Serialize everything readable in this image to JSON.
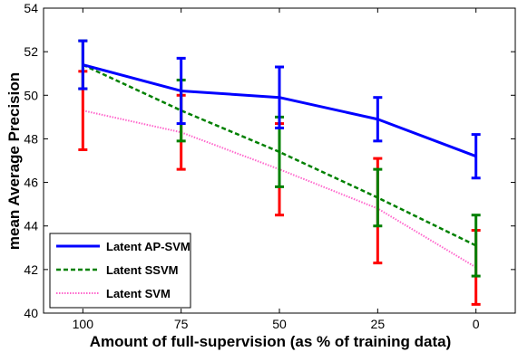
{
  "chart_data": {
    "type": "line",
    "xlabel": "Amount of full-supervision (as % of training data)",
    "ylabel": "mean Average Precision",
    "x": [
      100,
      75,
      50,
      25,
      0
    ],
    "x_tick_labels": [
      "100",
      "75",
      "50",
      "25",
      "0"
    ],
    "xlim": [
      110,
      -10
    ],
    "ylim": [
      40,
      54
    ],
    "y_ticks": [
      40,
      42,
      44,
      46,
      48,
      50,
      52,
      54
    ],
    "grid": false,
    "legend_position": "bottom-left",
    "series": [
      {
        "name": "Latent AP-SVM",
        "color": "#0000ff",
        "line_style": "solid",
        "values": [
          51.4,
          50.2,
          49.9,
          48.9,
          47.2
        ],
        "error_low": [
          50.3,
          48.7,
          48.5,
          47.9,
          46.2
        ],
        "error_high": [
          52.5,
          51.7,
          51.3,
          49.9,
          48.2
        ],
        "error_color": "#0000ff"
      },
      {
        "name": "Latent SSVM",
        "color": "#008000",
        "line_style": "dashed",
        "values": [
          51.4,
          49.3,
          47.4,
          45.3,
          43.1
        ],
        "error_low": [
          50.3,
          47.9,
          45.8,
          44.0,
          41.7
        ],
        "error_high": [
          52.5,
          50.7,
          49.0,
          46.6,
          44.5
        ],
        "error_color": "#008000"
      },
      {
        "name": "Latent SVM",
        "color": "#ff66cc",
        "line_style": "dotted",
        "values": [
          49.3,
          48.3,
          46.6,
          44.8,
          42.1
        ],
        "error_low": [
          47.5,
          46.6,
          44.5,
          42.3,
          40.4
        ],
        "error_high": [
          51.1,
          50.0,
          48.7,
          47.1,
          43.8
        ],
        "error_color": "#ff0000"
      }
    ]
  }
}
